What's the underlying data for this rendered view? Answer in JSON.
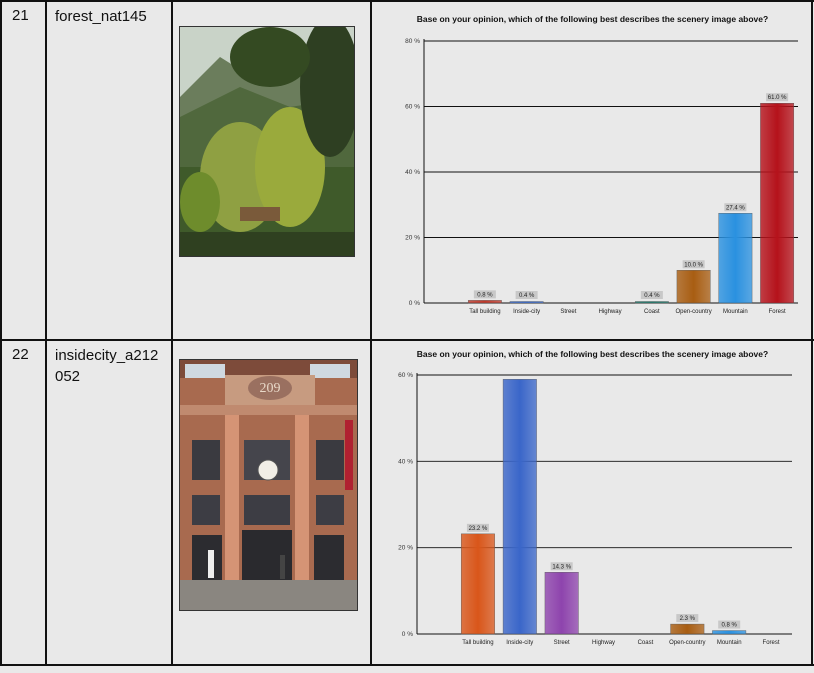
{
  "rows": [
    {
      "num": "21",
      "name": "forest_nat145",
      "image": "forest-scenery-photo"
    },
    {
      "num": "22",
      "name": "insidecity_a212 052",
      "name_lines": [
        "insidecity_a212",
        "052"
      ],
      "image": "city-building-photo"
    }
  ],
  "photo2_sign": "209",
  "chart_data": [
    {
      "type": "bar",
      "title": "Base on your opinion, which of the following best describes the scenery image above?",
      "categories": [
        "Tall building",
        "Inside-city",
        "Street",
        "Highway",
        "Coast",
        "Open-country",
        "Mountain",
        "Forest"
      ],
      "values": [
        0.8,
        0.4,
        0,
        0,
        0.4,
        10.0,
        27.4,
        61.0
      ],
      "data_labels": [
        "0.8 %",
        "0.4 %",
        "",
        "",
        "0.4 %",
        "10.0 %",
        "27.4 %",
        "61.0 %"
      ],
      "colors": [
        "#c0392b",
        "#3a6fd8",
        "#8e44ad",
        "#888888",
        "#1f7f70",
        "#a85d12",
        "#2a91e0",
        "#b5121b"
      ],
      "ylim": [
        0,
        80
      ],
      "yticks": [
        0,
        20,
        40,
        60,
        80
      ],
      "ytick_labels": [
        "0 %",
        "20 %",
        "40 %",
        "60 %",
        "80 %"
      ],
      "grid": true
    },
    {
      "type": "bar",
      "title": "Base on your opinion, which of the following best describes the scenery image above?",
      "categories": [
        "Tall building",
        "Inside-city",
        "Street",
        "Highway",
        "Coast",
        "Open-country",
        "Mountain",
        "Forest"
      ],
      "values": [
        23.2,
        59.0,
        14.3,
        0,
        0,
        2.3,
        0.8,
        0
      ],
      "data_labels": [
        "23.2 %",
        "",
        "14.3 %",
        "",
        "",
        "2.3 %",
        "0.8 %",
        ""
      ],
      "colors": [
        "#d9561a",
        "#3a66c9",
        "#8e44ad",
        "#888888",
        "#1f7f70",
        "#a85d12",
        "#2a91e0",
        "#b5121b"
      ],
      "ylim": [
        0,
        60
      ],
      "yticks": [
        0,
        20,
        40,
        60
      ],
      "ytick_labels": [
        "0 %",
        "20 %",
        "40 %",
        "60 %"
      ],
      "grid": true
    }
  ]
}
